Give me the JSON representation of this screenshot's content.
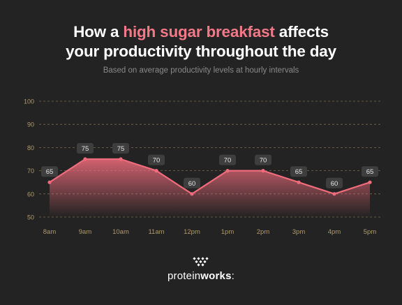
{
  "header": {
    "title_pre": "How a ",
    "title_highlight": "high sugar breakfast",
    "title_post": " affects",
    "title_line2": "your productivity throughout the day",
    "subtitle": "Based on average productivity levels at hourly intervals"
  },
  "brand": {
    "name_light": "protein",
    "name_bold": "works",
    "suffix": ":"
  },
  "colors": {
    "background": "#232323",
    "accent": "#f27a88",
    "line": "#f06c7c",
    "tick_label": "#b39a6a",
    "grid": "#b39a6a",
    "badge": "#3e3e3e"
  },
  "chart_data": {
    "type": "area",
    "categories": [
      "8am",
      "9am",
      "10am",
      "11am",
      "12pm",
      "1pm",
      "2pm",
      "3pm",
      "4pm",
      "5pm"
    ],
    "values": [
      65,
      75,
      75,
      70,
      60,
      70,
      70,
      65,
      60,
      65
    ],
    "value_labels": [
      "65",
      "75",
      "75",
      "70",
      "60",
      "70",
      "70",
      "65",
      "60",
      "65"
    ],
    "y_ticks": [
      50,
      60,
      70,
      80,
      90,
      100
    ],
    "ylim": [
      50,
      100
    ],
    "grid": true,
    "grid_style": "dashed-horizontal",
    "legend": "none"
  }
}
